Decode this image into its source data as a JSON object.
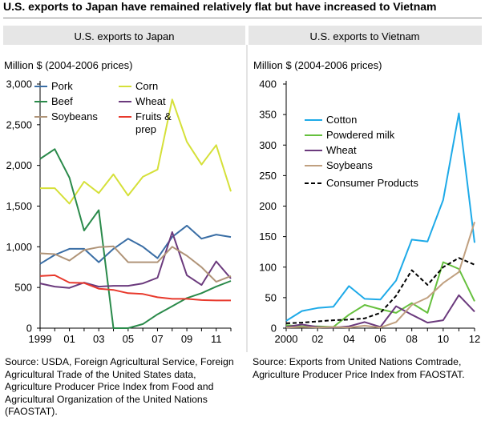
{
  "title": "U.S. exports to Japan have remained relatively flat but have increased to Vietnam",
  "source_left": "Source:  USDA, Foreign Agricultural Service, Foreign Agricultural Trade of the United States data, Agriculture Producer Price Index from Food and Agricultural Organization of the United Nations (FAOSTAT).",
  "source_right": "Source:  Exports from United Nations Comtrade, Agriculture Producer Price Index from FAOSTAT.",
  "chart_data": [
    {
      "type": "line",
      "title": "U.S. exports to Japan",
      "ylabel": "Million $ (2004-2006 prices)",
      "xlabel": "",
      "x": [
        1999,
        2000,
        2001,
        2002,
        2003,
        2004,
        2005,
        2006,
        2007,
        2008,
        2009,
        2010,
        2011,
        2012
      ],
      "xticks": [
        1999,
        2001,
        2003,
        2005,
        2007,
        2009,
        2011
      ],
      "xtick_labels": [
        "1999",
        "01",
        "03",
        "05",
        "07",
        "09",
        "11"
      ],
      "ylim": [
        0,
        3000
      ],
      "yticks": [
        0,
        500,
        1000,
        1500,
        2000,
        2500,
        3000
      ],
      "ytick_labels": [
        "0",
        "500",
        "1,000",
        "1,500",
        "2,000",
        "2,500",
        "3,000"
      ],
      "grid": false,
      "legend_position": "top",
      "series": [
        {
          "name": "Pork",
          "color": "#3a6ea5",
          "values": [
            790,
            900,
            975,
            975,
            810,
            975,
            1100,
            1000,
            860,
            1120,
            1260,
            1100,
            1150,
            1120
          ]
        },
        {
          "name": "Corn",
          "color": "#d5e039",
          "values": [
            1720,
            1720,
            1530,
            1800,
            1660,
            1890,
            1630,
            1860,
            1950,
            2810,
            2290,
            2010,
            2250,
            1680
          ]
        },
        {
          "name": "Beef",
          "color": "#2a8a4a",
          "values": [
            2080,
            2200,
            1850,
            1200,
            1450,
            0,
            0,
            50,
            170,
            270,
            370,
            430,
            510,
            580
          ]
        },
        {
          "name": "Wheat",
          "color": "#6b3a7d",
          "values": [
            550,
            510,
            495,
            560,
            510,
            520,
            520,
            550,
            620,
            1180,
            650,
            530,
            820,
            610
          ]
        },
        {
          "name": "Soybeans",
          "color": "#b09478",
          "values": [
            920,
            910,
            830,
            960,
            995,
            1005,
            810,
            810,
            810,
            1000,
            890,
            750,
            570,
            640
          ]
        },
        {
          "name": "Fruits & prep",
          "color": "#e8392c",
          "values": [
            640,
            650,
            560,
            555,
            485,
            470,
            430,
            420,
            380,
            360,
            360,
            345,
            340,
            340
          ]
        }
      ]
    },
    {
      "type": "line",
      "title": "U.S. exports to Vietnam",
      "ylabel": "Million $ (2004-2006 prices)",
      "xlabel": "",
      "x": [
        2000,
        2001,
        2002,
        2003,
        2004,
        2005,
        2006,
        2007,
        2008,
        2009,
        2010,
        2011,
        2012
      ],
      "xticks": [
        2000,
        2002,
        2004,
        2006,
        2008,
        2010,
        2012
      ],
      "xtick_labels": [
        "2000",
        "02",
        "04",
        "06",
        "08",
        "10",
        "12"
      ],
      "ylim": [
        0,
        400
      ],
      "yticks": [
        0,
        50,
        100,
        150,
        200,
        250,
        300,
        350,
        400
      ],
      "ytick_labels": [
        "0",
        "50",
        "100",
        "150",
        "200",
        "250",
        "300",
        "350",
        "400"
      ],
      "grid": false,
      "legend_position": "top-left",
      "series": [
        {
          "name": "Cotton",
          "color": "#1eaae8",
          "dash": false,
          "values": [
            12,
            28,
            33,
            35,
            69,
            48,
            47,
            78,
            145,
            142,
            210,
            352,
            140
          ]
        },
        {
          "name": "Powdered milk",
          "color": "#66c03e",
          "dash": false,
          "values": [
            5,
            3,
            3,
            2,
            22,
            38,
            31,
            25,
            41,
            25,
            108,
            97,
            44
          ]
        },
        {
          "name": "Wheat",
          "color": "#6b3a7d",
          "dash": false,
          "values": [
            2,
            6,
            2,
            1,
            3,
            10,
            2,
            36,
            22,
            9,
            13,
            54,
            27
          ]
        },
        {
          "name": "Soybeans",
          "color": "#c0a080",
          "dash": false,
          "values": [
            1,
            2,
            1,
            2,
            1,
            4,
            1,
            10,
            38,
            50,
            74,
            92,
            174
          ]
        },
        {
          "name": "Consumer Products",
          "color": "#000000",
          "dash": true,
          "values": [
            8,
            9,
            11,
            13,
            14,
            16,
            25,
            53,
            95,
            71,
            100,
            115,
            104
          ]
        }
      ]
    }
  ]
}
